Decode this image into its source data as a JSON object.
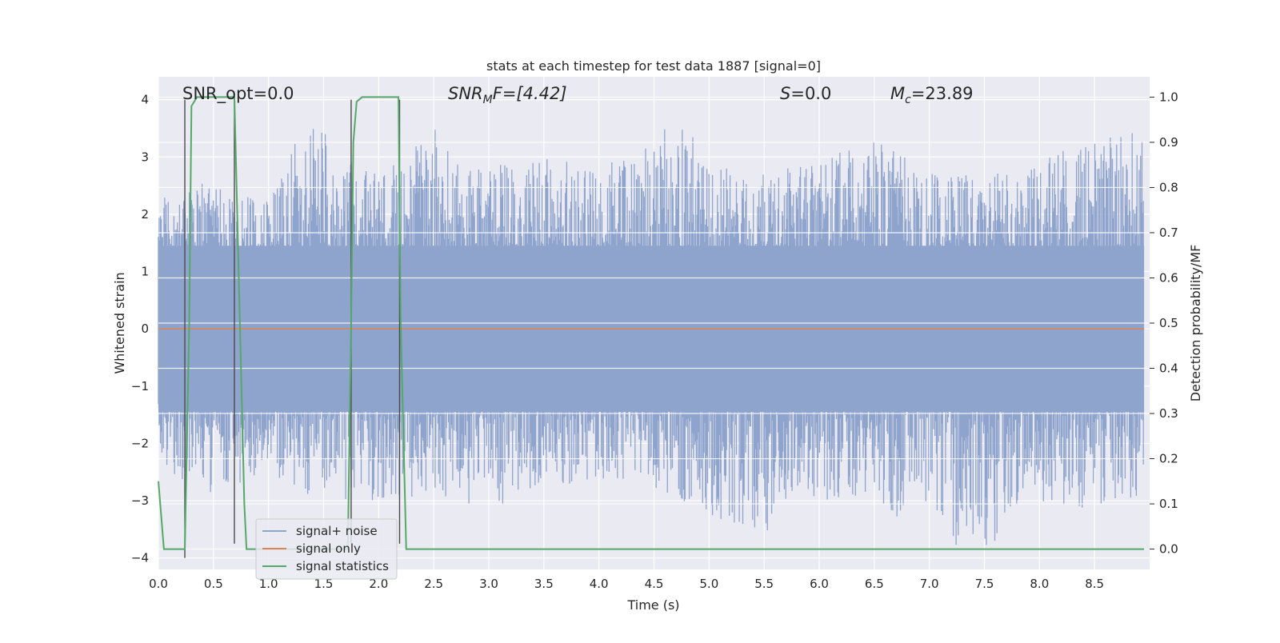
{
  "chart_data": {
    "type": "line",
    "title": "stats at each timestep for test data 1887 [signal=0]",
    "xlabel": "Time (s)",
    "ylabel_left": "Whitened strain",
    "ylabel_right": "Detection probability/MF",
    "xlim": [
      0.0,
      9.0
    ],
    "ylim_left": [
      -4.2,
      4.4
    ],
    "ylim_right": [
      -0.045,
      1.045
    ],
    "x_ticks": [
      "0.0",
      "0.5",
      "1.0",
      "1.5",
      "2.0",
      "2.5",
      "3.0",
      "3.5",
      "4.0",
      "4.5",
      "5.0",
      "5.5",
      "6.0",
      "6.5",
      "7.0",
      "7.5",
      "8.0",
      "8.5"
    ],
    "y_ticks_left": [
      "4",
      "3",
      "2",
      "1",
      "0",
      "−1",
      "−2",
      "−3",
      "−4"
    ],
    "y_ticks_right": [
      "1.0",
      "0.9",
      "0.8",
      "0.7",
      "0.6",
      "0.5",
      "0.4",
      "0.3",
      "0.2",
      "0.1",
      "0.0"
    ],
    "grid": true,
    "legend_position": "lower-left",
    "annotations": {
      "snr_opt": "SNR_opt=0.0",
      "snr_mf_main": "SNR",
      "snr_mf_sub": "M",
      "snr_mf_rest": "F=[4.42]",
      "s_main": "S",
      "s_rest": "=0.0",
      "mc_main": "M",
      "mc_sub": "c",
      "mc_rest": "=23.89"
    },
    "series": [
      {
        "name": "signal+ noise",
        "color": "#8fa4cc",
        "note_envelope": true,
        "envelope_upper": [
          [
            0.0,
            2.4
          ],
          [
            0.5,
            2.6
          ],
          [
            1.0,
            2.4
          ],
          [
            1.4,
            3.8
          ],
          [
            1.6,
            3.1
          ],
          [
            2.0,
            2.7
          ],
          [
            2.5,
            3.5
          ],
          [
            3.0,
            2.9
          ],
          [
            3.5,
            3.0
          ],
          [
            4.0,
            2.9
          ],
          [
            4.5,
            3.3
          ],
          [
            4.65,
            4.0
          ],
          [
            5.0,
            2.9
          ],
          [
            5.5,
            2.7
          ],
          [
            6.0,
            3.0
          ],
          [
            6.5,
            3.3
          ],
          [
            7.0,
            2.8
          ],
          [
            7.5,
            2.7
          ],
          [
            8.0,
            2.9
          ],
          [
            8.5,
            3.4
          ],
          [
            8.95,
            3.5
          ]
        ],
        "envelope_lower": [
          [
            0.0,
            -2.5
          ],
          [
            0.5,
            -2.9
          ],
          [
            1.0,
            -2.6
          ],
          [
            1.5,
            -3.0
          ],
          [
            2.0,
            -3.1
          ],
          [
            2.5,
            -2.9
          ],
          [
            3.0,
            -3.2
          ],
          [
            3.5,
            -2.8
          ],
          [
            4.0,
            -2.7
          ],
          [
            4.5,
            -2.8
          ],
          [
            5.0,
            -3.3
          ],
          [
            5.5,
            -3.6
          ],
          [
            6.0,
            -3.0
          ],
          [
            6.5,
            -2.9
          ],
          [
            6.7,
            -3.3
          ],
          [
            7.0,
            -3.0
          ],
          [
            7.2,
            -3.8
          ],
          [
            7.6,
            -3.8
          ],
          [
            8.0,
            -3.0
          ],
          [
            8.5,
            -3.2
          ],
          [
            8.95,
            -2.9
          ]
        ]
      },
      {
        "name": "signal only",
        "color": "#dd8452",
        "axis": "left",
        "x": [
          0.0,
          8.95
        ],
        "y": [
          0.0,
          0.0
        ]
      },
      {
        "name": "signal statistics",
        "color": "#55a868",
        "axis": "right",
        "x": [
          0.0,
          0.05,
          0.1,
          0.2,
          0.24,
          0.28,
          0.3,
          0.35,
          0.4,
          0.5,
          0.6,
          0.69,
          0.72,
          0.78,
          0.8,
          0.85,
          1.0,
          1.5,
          1.72,
          1.75,
          1.77,
          1.8,
          1.85,
          1.9,
          2.0,
          2.1,
          2.18,
          2.2,
          2.25,
          2.3,
          2.5,
          3.0,
          4.0,
          5.0,
          6.0,
          7.0,
          8.0,
          8.95
        ],
        "y": [
          0.15,
          0.0,
          0.0,
          0.0,
          0.0,
          0.5,
          0.98,
          1.0,
          1.0,
          1.0,
          1.0,
          1.0,
          0.7,
          0.1,
          0.0,
          0.0,
          0.0,
          0.0,
          0.0,
          0.5,
          0.9,
          0.99,
          1.0,
          1.0,
          1.0,
          1.0,
          1.0,
          0.5,
          0.0,
          0.0,
          0.0,
          0.0,
          0.0,
          0.0,
          0.0,
          0.0,
          0.0,
          0.0
        ]
      }
    ],
    "vlines": [
      {
        "x": 0.24,
        "y_from": -4.0,
        "y_to": 4.0
      },
      {
        "x": 0.69,
        "y_from": -3.75,
        "y_to": 4.0
      },
      {
        "x": 1.75,
        "y_from": -3.75,
        "y_to": 4.0
      },
      {
        "x": 2.19,
        "y_from": -3.75,
        "y_to": 4.0
      }
    ]
  },
  "legend": {
    "item1": "signal+ noise",
    "item2": "signal only",
    "item3": "signal statistics"
  }
}
